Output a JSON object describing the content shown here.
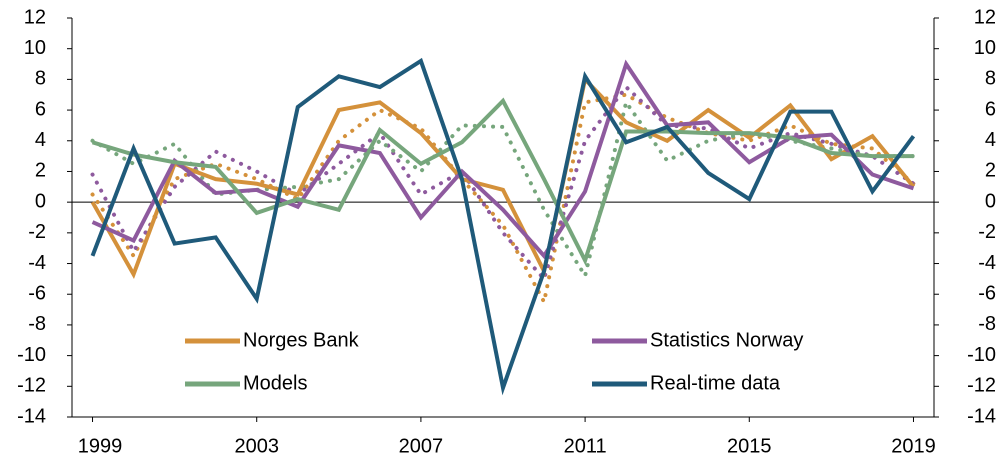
{
  "chart_data": {
    "type": "line",
    "x": [
      1999,
      2000,
      2001,
      2002,
      2003,
      2004,
      2005,
      2006,
      2007,
      2008,
      2009,
      2010,
      2011,
      2012,
      2013,
      2014,
      2015,
      2016,
      2017,
      2018,
      2019
    ],
    "xlim": [
      1998.5,
      2019.5
    ],
    "xticks": [
      1999,
      2003,
      2007,
      2011,
      2015,
      2019
    ],
    "ylim": [
      -14,
      12
    ],
    "yticks": [
      -14,
      -12,
      -10,
      -8,
      -6,
      -4,
      -2,
      0,
      2,
      4,
      6,
      8,
      10,
      12
    ],
    "y2lim": [
      -14,
      12
    ],
    "y2ticks": [
      -14,
      -12,
      -10,
      -8,
      -6,
      -4,
      -2,
      0,
      2,
      4,
      6,
      8,
      10,
      12
    ],
    "series": [
      {
        "name": "Norges Bank",
        "color": "#d4913b",
        "values": [
          0,
          -4.7,
          2.5,
          1.5,
          1.2,
          0.5,
          6.0,
          6.5,
          4.5,
          1.5,
          0.8,
          -4.5,
          8.0,
          5.2,
          4.0,
          6.0,
          4.2,
          6.3,
          2.8,
          4.3,
          1.0
        ],
        "dotted_values": [
          0.5,
          -3.5,
          1.5,
          2.5,
          1.5,
          0.2,
          4.0,
          6.0,
          4.8,
          1.5,
          -1.5,
          -6.5,
          6.5,
          7.0,
          5.5,
          4.5,
          4.0,
          5.0,
          3.8,
          3.5,
          1.2
        ]
      },
      {
        "name": "Statistics Norway",
        "color": "#8e5a9e",
        "values": [
          -1.3,
          -2.5,
          2.7,
          0.6,
          0.8,
          -0.3,
          3.7,
          3.2,
          -1.0,
          2.0,
          -0.5,
          -3.5,
          0.7,
          9.0,
          5.0,
          5.2,
          2.6,
          4.2,
          4.4,
          1.8,
          0.9
        ],
        "dotted_values": [
          1.8,
          -3.2,
          1.0,
          3.3,
          2.0,
          0.5,
          2.5,
          4.5,
          0.5,
          2.0,
          -2.0,
          -5.0,
          4.0,
          7.5,
          5.0,
          4.8,
          3.5,
          4.5,
          3.8,
          3.0,
          1.2
        ]
      },
      {
        "name": "Models",
        "color": "#76a67c",
        "values": [
          3.9,
          3.1,
          2.6,
          2.3,
          -0.7,
          0.2,
          -0.5,
          4.7,
          2.5,
          3.9,
          6.6,
          1.5,
          -3.8,
          4.6,
          4.6,
          4.5,
          4.5,
          4.2,
          3.2,
          3.0,
          3.0
        ],
        "dotted_values": [
          4.0,
          2.5,
          3.8,
          0.5,
          0.8,
          1.0,
          1.5,
          4.0,
          2.0,
          5.0,
          4.9,
          -0.5,
          -4.8,
          6.5,
          2.7,
          4.0,
          4.5,
          4.0,
          3.5,
          3.0,
          3.0
        ]
      },
      {
        "name": "Real-time data",
        "color": "#1f5a7a",
        "values": [
          -3.5,
          3.5,
          -2.7,
          -2.3,
          -6.3,
          6.2,
          8.2,
          7.5,
          9.2,
          1.5,
          -12.1,
          -4.5,
          8.2,
          3.9,
          4.9,
          1.9,
          0.2,
          5.9,
          5.9,
          0.7,
          4.3
        ]
      }
    ]
  }
}
